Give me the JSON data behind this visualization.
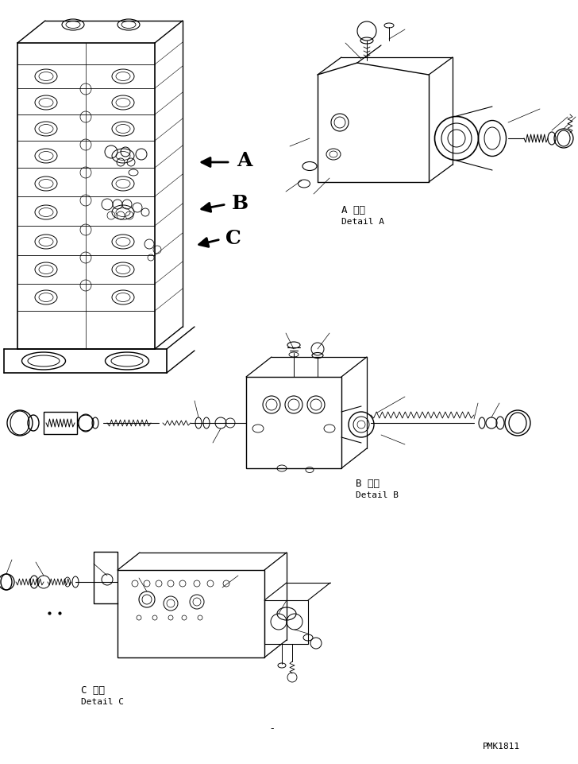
{
  "background_color": "#ffffff",
  "line_color": "#000000",
  "label_A": "A",
  "label_B": "B",
  "label_C": "C",
  "detail_A_jp": "A 詳細",
  "detail_A_en": "Detail A",
  "detail_B_jp": "B 詳細",
  "detail_B_en": "Detail B",
  "detail_C_jp": "C 詳細",
  "detail_C_en": "Detail C",
  "watermark": "PMK1811",
  "fig_width": 7.28,
  "fig_height": 9.62,
  "dpi": 100
}
